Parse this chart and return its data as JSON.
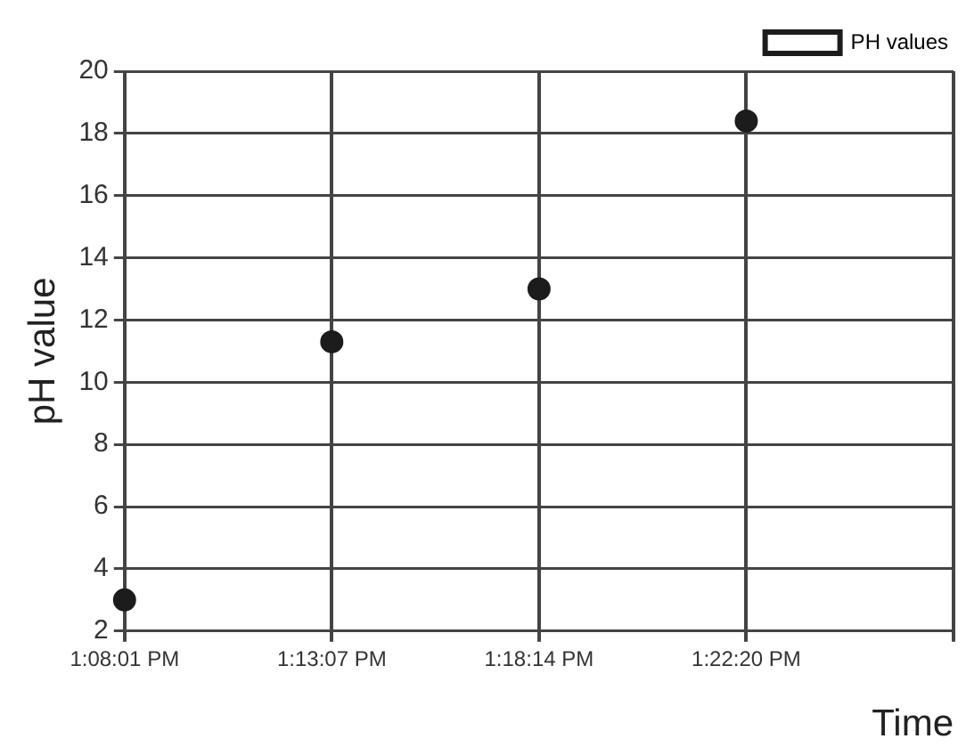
{
  "chart_data": {
    "type": "scatter",
    "xlabel": "Time",
    "ylabel": "pH value",
    "categories": [
      "1:08:01 PM",
      "1:13:07 PM",
      "1:18:14 PM",
      "1:22:20 PM",
      null
    ],
    "series": [
      {
        "name": "PH values",
        "color": "#1c1c1c",
        "values": [
          3,
          11.3,
          13,
          18.4,
          null
        ]
      }
    ],
    "ylim": [
      2,
      20
    ],
    "yticks": [
      2,
      4,
      6,
      8,
      10,
      12,
      14,
      16,
      18,
      20
    ],
    "grid": true,
    "legend": "top right",
    "marker": "circle"
  }
}
